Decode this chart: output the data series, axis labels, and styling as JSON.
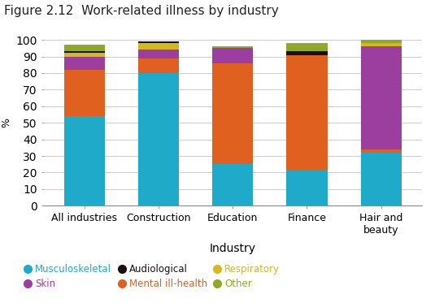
{
  "title": "Figure 2.12  Work-related illness by industry",
  "categories": [
    "All industries",
    "Construction",
    "Education",
    "Finance",
    "Hair and\nbeauty"
  ],
  "xlabel": "Industry",
  "ylabel": "%",
  "ylim": [
    0,
    100
  ],
  "series": {
    "Musculoskeletal": [
      54,
      80,
      25,
      21,
      32
    ],
    "Mental ill-health": [
      28,
      9,
      61,
      70,
      2
    ],
    "Skin": [
      8,
      5,
      9,
      0,
      62
    ],
    "Respiratory": [
      2,
      4,
      0,
      0,
      2
    ],
    "Audiological": [
      1,
      1,
      0,
      2,
      0
    ],
    "Other": [
      4,
      0,
      1,
      5,
      2
    ]
  },
  "colors": {
    "Musculoskeletal": "#1EAAC8",
    "Mental ill-health": "#E06020",
    "Skin": "#9B3EA0",
    "Respiratory": "#D4B820",
    "Audiological": "#1A1010",
    "Other": "#90A828"
  },
  "stack_order": [
    "Musculoskeletal",
    "Mental ill-health",
    "Skin",
    "Respiratory",
    "Audiological",
    "Other"
  ],
  "legend_order": [
    "Musculoskeletal",
    "Skin",
    "Audiological",
    "Mental ill-health",
    "Respiratory",
    "Other"
  ],
  "bar_width": 0.55,
  "background_color": "#ffffff",
  "title_fontsize": 11,
  "axis_fontsize": 9,
  "legend_fontsize": 8.5
}
